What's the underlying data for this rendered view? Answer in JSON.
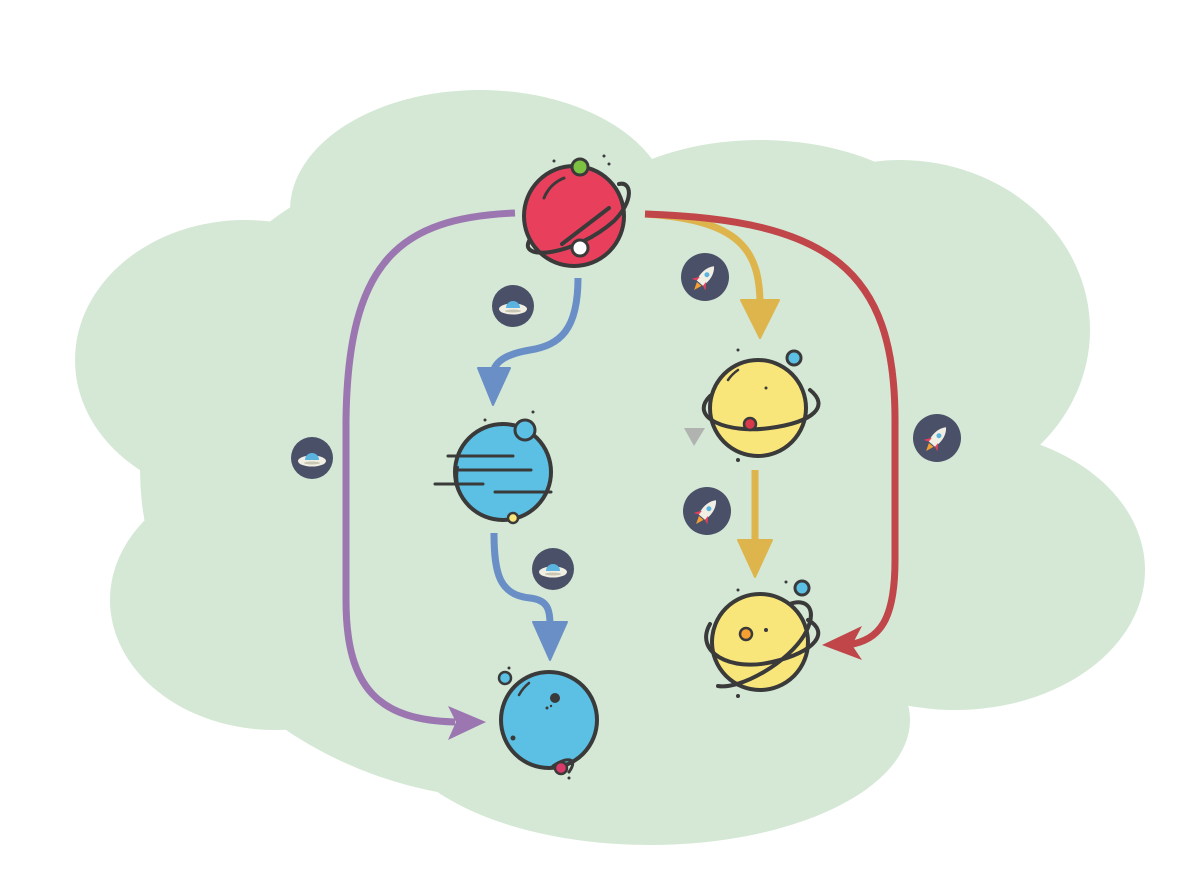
{
  "diagram": {
    "background_color": "#d4e8d5",
    "planets": [
      {
        "id": "red-planet",
        "color": "#e8405c",
        "style": "ringed"
      },
      {
        "id": "blue-striped-planet",
        "color": "#5bc0e3",
        "style": "striped"
      },
      {
        "id": "blue-planet",
        "color": "#5bc0e3",
        "style": "plain"
      },
      {
        "id": "yellow-ringed-planet",
        "color": "#f9e67a",
        "style": "ringed"
      },
      {
        "id": "yellow-double-ring-planet",
        "color": "#f9e67a",
        "style": "double-ring"
      }
    ],
    "transitions": [
      {
        "from": "red-planet",
        "to": "blue-planet",
        "color": "#9b76b0",
        "vehicle": "ufo-icon"
      },
      {
        "from": "red-planet",
        "to": "blue-striped-planet",
        "color": "#6a8fc6",
        "vehicle": "ufo-icon"
      },
      {
        "from": "blue-striped-planet",
        "to": "blue-planet",
        "color": "#6a8fc6",
        "vehicle": "ufo-icon"
      },
      {
        "from": "red-planet",
        "to": "yellow-ringed-planet",
        "color": "#deb44c",
        "vehicle": "rocket-icon"
      },
      {
        "from": "yellow-ringed-planet",
        "to": "yellow-double-ring-planet",
        "color": "#deb44c",
        "vehicle": "rocket-icon"
      },
      {
        "from": "red-planet",
        "to": "yellow-double-ring-planet",
        "color": "#c0464a",
        "vehicle": "rocket-icon"
      }
    ]
  }
}
